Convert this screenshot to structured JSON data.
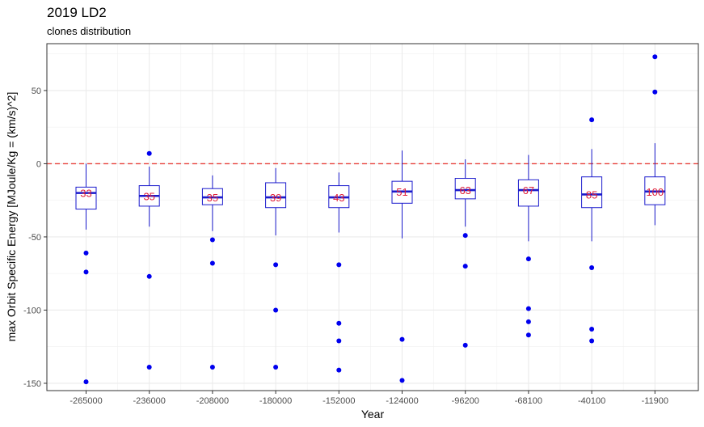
{
  "chart_data": {
    "type": "box",
    "title": "2019 LD2",
    "subtitle": "clones distribution",
    "xlabel": "Year",
    "ylabel": "max Orbit Specific Energy [MJoule/Kg = (km/s)^2]",
    "ylim": [
      -155,
      82
    ],
    "y_ticks": [
      50,
      0,
      -50,
      -100,
      -150
    ],
    "reference_line": {
      "y": 0,
      "style": "dashed",
      "color": "#e8413c"
    },
    "box_color": "#1a1acc",
    "median_color": "#1a1acc",
    "outlier_color": "#0000ee",
    "count_label_color": "#e0203a",
    "grid": true,
    "legend": "none",
    "categories": [
      "-265000",
      "-236000",
      "-208000",
      "-180000",
      "-152000",
      "-124000",
      "-96200",
      "-68100",
      "-40100",
      "-11900"
    ],
    "boxes": [
      {
        "x": "-265000",
        "whisker_low": -45,
        "q1": -31,
        "median": -20,
        "q3": -16,
        "whisker_high": 0,
        "outliers": [
          -61,
          -74,
          -149
        ],
        "count": "33"
      },
      {
        "x": "-236000",
        "whisker_low": -43,
        "q1": -29,
        "median": -22,
        "q3": -15,
        "whisker_high": -2,
        "outliers": [
          7,
          -77,
          -139
        ],
        "count": "35"
      },
      {
        "x": "-208000",
        "whisker_low": -46,
        "q1": -28,
        "median": -23,
        "q3": -17,
        "whisker_high": -8,
        "outliers": [
          -52,
          -68,
          -139
        ],
        "count": "35"
      },
      {
        "x": "-180000",
        "whisker_low": -49,
        "q1": -30,
        "median": -23,
        "q3": -13,
        "whisker_high": -3,
        "outliers": [
          -69,
          -100,
          -139
        ],
        "count": "39"
      },
      {
        "x": "-152000",
        "whisker_low": -47,
        "q1": -30,
        "median": -23,
        "q3": -15,
        "whisker_high": -6,
        "outliers": [
          -69,
          -109,
          -121,
          -141
        ],
        "count": "43"
      },
      {
        "x": "-124000",
        "whisker_low": -51,
        "q1": -27,
        "median": -19,
        "q3": -12,
        "whisker_high": 9,
        "outliers": [
          -120,
          -148
        ],
        "count": "51"
      },
      {
        "x": "-96200",
        "whisker_low": -43,
        "q1": -24,
        "median": -18,
        "q3": -10,
        "whisker_high": 3,
        "outliers": [
          -49,
          -70,
          -124
        ],
        "count": "63"
      },
      {
        "x": "-68100",
        "whisker_low": -53,
        "q1": -29,
        "median": -18,
        "q3": -11,
        "whisker_high": 6,
        "outliers": [
          -65,
          -99,
          -108,
          -117
        ],
        "count": "67"
      },
      {
        "x": "-40100",
        "whisker_low": -53,
        "q1": -30,
        "median": -21,
        "q3": -9,
        "whisker_high": 10,
        "outliers": [
          30,
          -71,
          -113,
          -121
        ],
        "count": "85"
      },
      {
        "x": "-11900",
        "whisker_low": -42,
        "q1": -28,
        "median": -19,
        "q3": -9,
        "whisker_high": 14,
        "outliers": [
          73,
          49
        ],
        "count": "100"
      }
    ]
  }
}
